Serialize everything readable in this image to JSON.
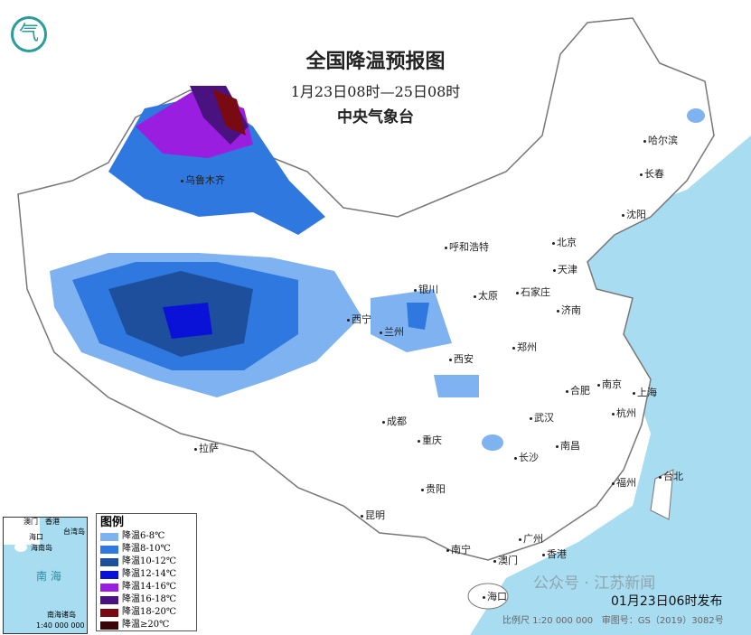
{
  "title": "全国降温预报图",
  "period": "1月23日08时—25日08时",
  "issuer": "中央气象台",
  "legend": {
    "title": "图例",
    "items": [
      {
        "label": "降温6-8℃",
        "color": "#7fb2f0"
      },
      {
        "label": "降温8-10℃",
        "color": "#2f78e0"
      },
      {
        "label": "降温10-12℃",
        "color": "#1d4f9c"
      },
      {
        "label": "降温12-14℃",
        "color": "#0a12d8"
      },
      {
        "label": "降温14-16℃",
        "color": "#9a1ee0"
      },
      {
        "label": "降温16-18℃",
        "color": "#4a1280"
      },
      {
        "label": "降温18-20℃",
        "color": "#7a0a12"
      },
      {
        "label": "降温≥20℃",
        "color": "#3a0508"
      }
    ]
  },
  "cities": [
    {
      "name": "哈尔滨"
    },
    {
      "name": "长春"
    },
    {
      "name": "沈阳"
    },
    {
      "name": "呼和浩特"
    },
    {
      "name": "北京"
    },
    {
      "name": "天津"
    },
    {
      "name": "太原"
    },
    {
      "name": "石家庄"
    },
    {
      "name": "济南"
    },
    {
      "name": "银川"
    },
    {
      "name": "西宁"
    },
    {
      "name": "兰州"
    },
    {
      "name": "郑州"
    },
    {
      "name": "西安"
    },
    {
      "name": "合肥"
    },
    {
      "name": "南京"
    },
    {
      "name": "上海"
    },
    {
      "name": "武汉"
    },
    {
      "name": "杭州"
    },
    {
      "name": "成都"
    },
    {
      "name": "重庆"
    },
    {
      "name": "长沙"
    },
    {
      "name": "南昌"
    },
    {
      "name": "拉萨"
    },
    {
      "name": "贵阳"
    },
    {
      "name": "福州"
    },
    {
      "name": "台北"
    },
    {
      "name": "昆明"
    },
    {
      "name": "南宁"
    },
    {
      "name": "广州"
    },
    {
      "name": "香港"
    },
    {
      "name": "澳门"
    },
    {
      "name": "海口"
    },
    {
      "name": "乌鲁木齐"
    }
  ],
  "inset": {
    "sea": "南  海",
    "islands": "南海诸岛",
    "scale": "1:40 000 000",
    "labels": [
      "澳门",
      "香港",
      "台湾岛",
      "海口",
      "海南岛"
    ]
  },
  "issued": "01月23日06时发布",
  "scale": "比例尺 1:20 000 000",
  "map_no": "审图号：GS（2019）3082号",
  "watermark": "公众号 · 江苏新闻",
  "sea_color": "#a8dcf0"
}
